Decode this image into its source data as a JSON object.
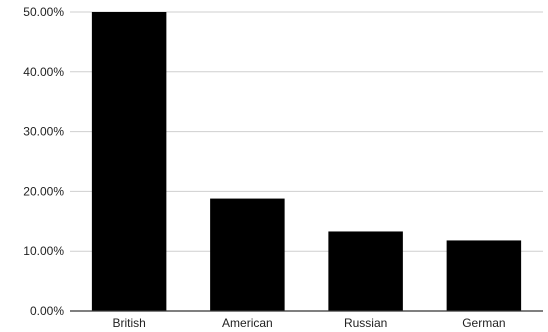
{
  "chart_data": {
    "type": "bar",
    "title": "",
    "xlabel": "",
    "ylabel": "",
    "categories": [
      "British",
      "American",
      "Russian",
      "German"
    ],
    "values": [
      50.0,
      18.8,
      13.3,
      11.8
    ],
    "ylim": [
      0,
      50
    ],
    "yticks": [
      0,
      10,
      20,
      30,
      40,
      50
    ],
    "ytick_labels": [
      "0.00%",
      "10.00%",
      "20.00%",
      "30.00%",
      "40.00%",
      "50.00%"
    ],
    "grid": true,
    "legend": "none",
    "bar_color": "#000000"
  }
}
